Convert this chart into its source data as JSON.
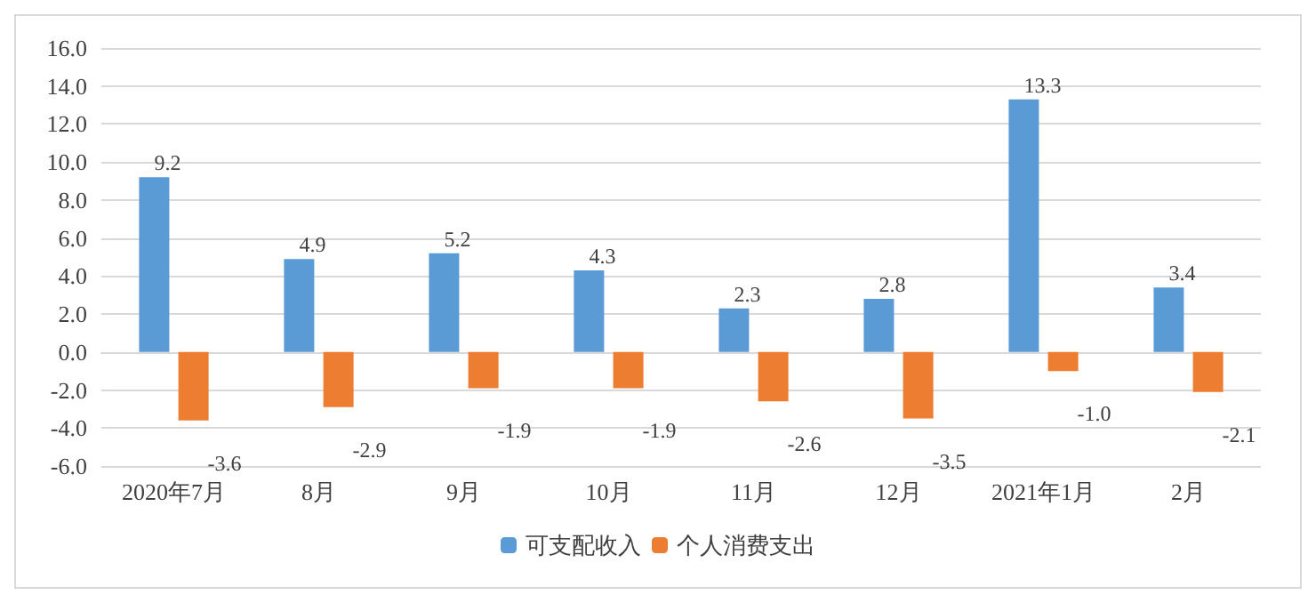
{
  "chart_data": {
    "type": "bar",
    "categories": [
      "2020年7月",
      "8月",
      "9月",
      "10月",
      "11月",
      "12月",
      "2021年1月",
      "2月"
    ],
    "series": [
      {
        "name": "可支配收入",
        "color": "#5b9bd5",
        "values": [
          9.2,
          4.9,
          5.2,
          4.3,
          2.3,
          2.8,
          13.3,
          3.4
        ],
        "value_labels": [
          "9.2",
          "4.9",
          "5.2",
          "4.3",
          "2.3",
          "2.8",
          "13.3",
          "3.4"
        ]
      },
      {
        "name": "个人消费支出",
        "color": "#ed7d31",
        "values": [
          -3.6,
          -2.9,
          -1.9,
          -1.9,
          -2.6,
          -3.5,
          -1.0,
          -2.1
        ],
        "value_labels": [
          "-3.6",
          "-2.9",
          "-1.9",
          "-1.9",
          "-2.6",
          "-3.5",
          "-1.0",
          "-2.1"
        ]
      }
    ],
    "ylim": [
      -6,
      16
    ],
    "yticks": [
      {
        "value": -6,
        "label": "-6.0"
      },
      {
        "value": -4,
        "label": "-4.0"
      },
      {
        "value": -2,
        "label": "-2.0"
      },
      {
        "value": 0,
        "label": "0.0"
      },
      {
        "value": 2,
        "label": "2.0"
      },
      {
        "value": 4,
        "label": "4.0"
      },
      {
        "value": 6,
        "label": "6.0"
      },
      {
        "value": 8,
        "label": "8.0"
      },
      {
        "value": 10,
        "label": "10.0"
      },
      {
        "value": 12,
        "label": "12.0"
      },
      {
        "value": 14,
        "label": "14.0"
      },
      {
        "value": 16,
        "label": "16.0"
      }
    ],
    "grid": "y",
    "legend": "bottom"
  }
}
